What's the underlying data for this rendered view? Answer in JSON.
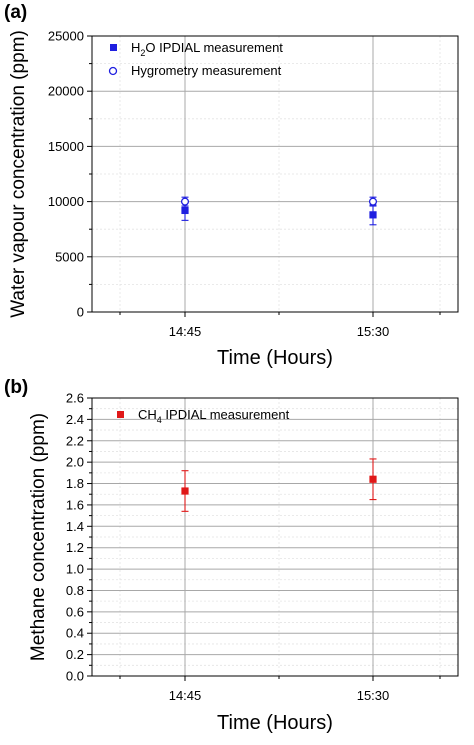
{
  "chart_data": [
    {
      "panel_label": "(a)",
      "type": "scatter",
      "xlabel": "Time (Hours)",
      "ylabel": "Water vapour concentration (ppm)",
      "x_ticks": [
        "14:45",
        "15:30"
      ],
      "ylim": [
        0,
        25000
      ],
      "y_ticks": [
        "0",
        "5000",
        "10000",
        "15000",
        "20000",
        "25000"
      ],
      "grid": true,
      "legend_position": "top-left",
      "series": [
        {
          "name_main": "H",
          "name_sub": "2",
          "name_rest": "O IPDIAL measurement",
          "marker": "filled-square",
          "color": "#1f1fe0",
          "x": [
            "14:45",
            "15:30"
          ],
          "y": [
            9200,
            8800
          ],
          "err": [
            900,
            900
          ]
        },
        {
          "name_main": "Hygrometry measurement",
          "name_sub": "",
          "name_rest": "",
          "marker": "open-circle",
          "color": "#1f1fe0",
          "x": [
            "14:45",
            "15:30"
          ],
          "y": [
            10000,
            10000
          ],
          "err": [
            400,
            400
          ]
        }
      ]
    },
    {
      "panel_label": "(b)",
      "type": "scatter",
      "xlabel": "Time (Hours)",
      "ylabel": "Methane concentration (ppm)",
      "x_ticks": [
        "14:45",
        "15:30"
      ],
      "ylim": [
        0,
        2.6
      ],
      "y_ticks": [
        "0.0",
        "0.2",
        "0.4",
        "0.6",
        "0.8",
        "1.0",
        "1.2",
        "1.4",
        "1.6",
        "1.8",
        "2.0",
        "2.2",
        "2.4",
        "2.6"
      ],
      "grid": true,
      "legend_position": "top-left",
      "series": [
        {
          "name_main": "CH",
          "name_sub": "4",
          "name_rest": " IPDIAL measurement",
          "marker": "filled-square",
          "color": "#e01818",
          "x": [
            "14:45",
            "15:30"
          ],
          "y": [
            1.73,
            1.84
          ],
          "err": [
            0.19,
            0.19
          ]
        }
      ]
    }
  ]
}
